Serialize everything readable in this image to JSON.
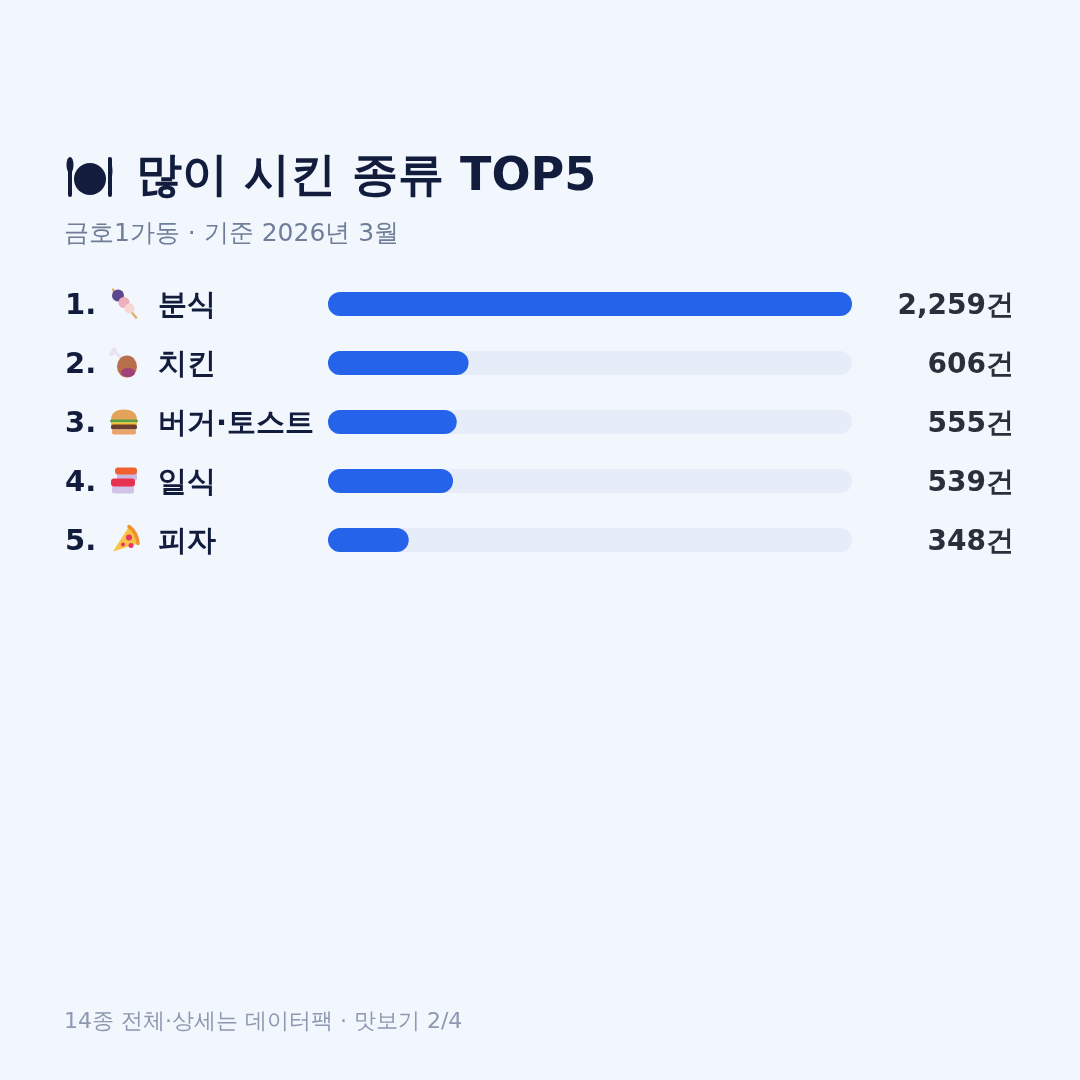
{
  "chart_data": {
    "type": "bar",
    "orientation": "horizontal",
    "title": "많이 시킨 종류 TOP5",
    "subtitle": "금호1가동 · 기준 2026년 3월",
    "categories": [
      "1. 분식",
      "2. 치킨",
      "3. 버거·토스트",
      "4. 일식",
      "5. 피자"
    ],
    "values": [
      2259,
      606,
      555,
      539,
      348
    ],
    "color": "#2563eb",
    "xlim": [
      0,
      2259
    ],
    "tick_labels": "y",
    "value_labels": [
      "2,259건",
      "606건",
      "555건",
      "539건",
      "348건"
    ],
    "annotations": [
      "14종 전체·상세는 데이터팩 · 맛보기 2/4"
    ]
  }
}
